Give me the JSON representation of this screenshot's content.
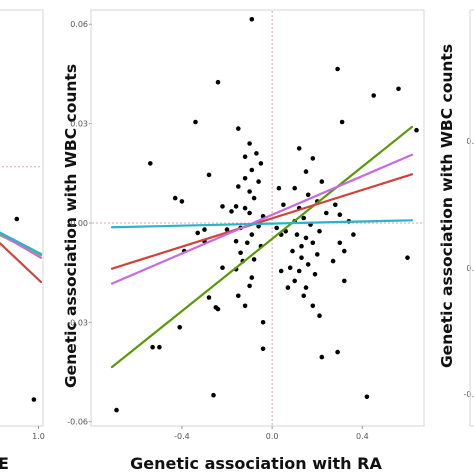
{
  "chart_data": [
    {
      "type": "scatter",
      "panel": "left (cropped)",
      "xlabel": "E",
      "ylabel": "",
      "x_ticks": [
        "1.0"
      ],
      "y_ticks": [],
      "xlim": [
        -0.4,
        1.06
      ],
      "ylim": [
        -0.065,
        0.065
      ],
      "grid": false,
      "points": [
        {
          "x": 0.48,
          "y": -0.0003
        },
        {
          "x": 0.89,
          "y": -0.057
        }
      ],
      "lines": [
        {
          "color": "#d3423a",
          "x": [
            -0.4,
            1.06
          ],
          "y": [
            -0.002,
            -0.0201
          ]
        },
        {
          "color": "#7fbf3f",
          "x": [
            -0.4,
            1.06
          ],
          "y": [
            -0.0023,
            -0.0117
          ]
        },
        {
          "color": "#c66be0",
          "x": [
            -0.4,
            1.06
          ],
          "y": [
            -0.0013,
            -0.0125
          ]
        },
        {
          "color": "#2ab3c9",
          "x": [
            -0.4,
            1.06
          ],
          "y": [
            -0.0013,
            -0.0113
          ]
        }
      ],
      "reference_line": {
        "orientation": "horizontal",
        "y": 0.0161,
        "color": "#e8a2a2"
      }
    },
    {
      "type": "scatter",
      "panel": "center",
      "xlabel": "Genetic association with RA",
      "ylabel": "Genetic association with WBC counts",
      "x_ticks": [
        "-0.4",
        "0.0",
        "0.4"
      ],
      "y_ticks": [
        "0.06",
        "0.03",
        "0.00",
        "-0.03",
        "-0.06"
      ],
      "xlim": [
        -0.71,
        0.62
      ],
      "ylim": [
        -0.061,
        0.064
      ],
      "grid": false,
      "reference_lines": [
        {
          "orientation": "vertical",
          "x": 0,
          "color": "#e8a2a2"
        },
        {
          "orientation": "horizontal",
          "y": 0,
          "color": "#e8a2a2"
        }
      ],
      "lines": [
        {
          "color": "#5a9a08",
          "x": [
            -0.71,
            0.62
          ],
          "y": [
            -0.0435,
            0.029
          ]
        },
        {
          "color": "#d3423a",
          "x": [
            -0.71,
            0.62
          ],
          "y": [
            -0.0138,
            0.0147
          ]
        },
        {
          "color": "#c66be0",
          "x": [
            -0.71,
            0.62
          ],
          "y": [
            -0.0183,
            0.0206
          ]
        },
        {
          "color": "#2ab3c9",
          "x": [
            -0.71,
            0.62
          ],
          "y": [
            -0.0013,
            0.0008
          ]
        }
      ],
      "points": [
        {
          "x": -0.09,
          "y": 0.0615
        },
        {
          "x": -0.24,
          "y": 0.0425
        },
        {
          "x": 0.29,
          "y": 0.0465
        },
        {
          "x": 0.45,
          "y": 0.0385
        },
        {
          "x": 0.56,
          "y": 0.0405
        },
        {
          "x": -0.15,
          "y": 0.0285
        },
        {
          "x": 0.31,
          "y": 0.0305
        },
        {
          "x": -0.34,
          "y": 0.0305
        },
        {
          "x": -0.54,
          "y": 0.018
        },
        {
          "x": 0.64,
          "y": 0.028
        },
        {
          "x": -0.1,
          "y": 0.024
        },
        {
          "x": -0.07,
          "y": 0.021
        },
        {
          "x": -0.12,
          "y": 0.02
        },
        {
          "x": -0.05,
          "y": 0.018
        },
        {
          "x": -0.09,
          "y": 0.016
        },
        {
          "x": -0.12,
          "y": 0.0135
        },
        {
          "x": -0.06,
          "y": 0.0125
        },
        {
          "x": -0.15,
          "y": 0.011
        },
        {
          "x": -0.1,
          "y": 0.0095
        },
        {
          "x": -0.16,
          "y": 0.005
        },
        {
          "x": -0.08,
          "y": 0.0075
        },
        {
          "x": -0.22,
          "y": 0.005
        },
        {
          "x": -0.12,
          "y": 0.0045
        },
        {
          "x": -0.18,
          "y": 0.0035
        },
        {
          "x": -0.1,
          "y": 0.003
        },
        {
          "x": -0.04,
          "y": 0.002
        },
        {
          "x": -0.06,
          "y": -0.001
        },
        {
          "x": -0.14,
          "y": -0.0015
        },
        {
          "x": -0.2,
          "y": -0.002
        },
        {
          "x": -0.09,
          "y": -0.0035
        },
        {
          "x": -0.16,
          "y": -0.0055
        },
        {
          "x": -0.11,
          "y": -0.006
        },
        {
          "x": -0.05,
          "y": -0.007
        },
        {
          "x": -0.14,
          "y": -0.009
        },
        {
          "x": -0.08,
          "y": -0.011
        },
        {
          "x": -0.13,
          "y": -0.0115
        },
        {
          "x": -0.16,
          "y": -0.014
        },
        {
          "x": -0.09,
          "y": -0.0165
        },
        {
          "x": -0.1,
          "y": -0.019
        },
        {
          "x": -0.15,
          "y": -0.022
        },
        {
          "x": -0.12,
          "y": -0.025
        },
        {
          "x": -0.24,
          "y": -0.026
        },
        {
          "x": -0.04,
          "y": -0.03
        },
        {
          "x": -0.28,
          "y": -0.0225
        },
        {
          "x": -0.43,
          "y": 0.0075
        },
        {
          "x": -0.4,
          "y": 0.0065
        },
        {
          "x": -0.28,
          "y": 0.0145
        },
        {
          "x": -0.39,
          "y": -0.0085
        },
        {
          "x": -0.3,
          "y": -0.002
        },
        {
          "x": -0.33,
          "y": -0.003
        },
        {
          "x": -0.22,
          "y": -0.0135
        },
        {
          "x": -0.3,
          "y": -0.0055
        },
        {
          "x": 0.12,
          "y": 0.0225
        },
        {
          "x": 0.18,
          "y": 0.0195
        },
        {
          "x": 0.15,
          "y": 0.0155
        },
        {
          "x": 0.22,
          "y": 0.0125
        },
        {
          "x": 0.1,
          "y": 0.0105
        },
        {
          "x": 0.16,
          "y": 0.0085
        },
        {
          "x": 0.2,
          "y": 0.0065
        },
        {
          "x": 0.12,
          "y": 0.0045
        },
        {
          "x": 0.24,
          "y": 0.003
        },
        {
          "x": 0.14,
          "y": 0.0015
        },
        {
          "x": 0.1,
          "y": 0.0005
        },
        {
          "x": 0.17,
          "y": -0.0005
        },
        {
          "x": 0.21,
          "y": -0.0025
        },
        {
          "x": 0.11,
          "y": -0.0035
        },
        {
          "x": 0.15,
          "y": -0.0045
        },
        {
          "x": 0.18,
          "y": -0.006
        },
        {
          "x": 0.13,
          "y": -0.007
        },
        {
          "x": 0.09,
          "y": -0.0085
        },
        {
          "x": 0.2,
          "y": -0.0095
        },
        {
          "x": 0.13,
          "y": -0.0105
        },
        {
          "x": 0.16,
          "y": -0.0125
        },
        {
          "x": 0.12,
          "y": -0.0145
        },
        {
          "x": 0.19,
          "y": -0.0155
        },
        {
          "x": 0.1,
          "y": -0.0175
        },
        {
          "x": 0.15,
          "y": -0.0195
        },
        {
          "x": 0.14,
          "y": -0.022
        },
        {
          "x": 0.18,
          "y": -0.025
        },
        {
          "x": 0.21,
          "y": -0.028
        },
        {
          "x": 0.3,
          "y": -0.006
        },
        {
          "x": 0.32,
          "y": -0.0085
        },
        {
          "x": 0.27,
          "y": -0.0115
        },
        {
          "x": 0.32,
          "y": -0.0175
        },
        {
          "x": 0.34,
          "y": 0.0005
        },
        {
          "x": 0.3,
          "y": 0.0025
        },
        {
          "x": 0.36,
          "y": -0.0035
        },
        {
          "x": 0.28,
          "y": 0.0055
        },
        {
          "x": 0.05,
          "y": 0.0055
        },
        {
          "x": 0.03,
          "y": 0.0105
        },
        {
          "x": 0.06,
          "y": -0.0025
        },
        {
          "x": 0.04,
          "y": -0.0145
        },
        {
          "x": 0.07,
          "y": -0.0195
        },
        {
          "x": 0.02,
          "y": -0.0015
        },
        {
          "x": 0.22,
          "y": -0.0405
        },
        {
          "x": 0.29,
          "y": -0.039
        },
        {
          "x": -0.5,
          "y": -0.0375
        },
        {
          "x": -0.53,
          "y": -0.0375
        },
        {
          "x": -0.41,
          "y": -0.0315
        },
        {
          "x": -0.25,
          "y": -0.0255
        },
        {
          "x": -0.04,
          "y": -0.038
        },
        {
          "x": -0.69,
          "y": -0.0565
        },
        {
          "x": -0.26,
          "y": -0.052
        },
        {
          "x": 0.6,
          "y": -0.0105
        },
        {
          "x": 0.42,
          "y": -0.0525
        },
        {
          "x": 0.04,
          "y": -0.0035
        },
        {
          "x": 0.08,
          "y": -0.0135
        }
      ]
    },
    {
      "type": "scatter",
      "panel": "right (cropped)",
      "xlabel": "",
      "ylabel": "Genetic association with WBC counts",
      "x_ticks": [],
      "y_ticks": [
        "0.",
        "0.",
        "-0."
      ],
      "grid": false
    }
  ]
}
